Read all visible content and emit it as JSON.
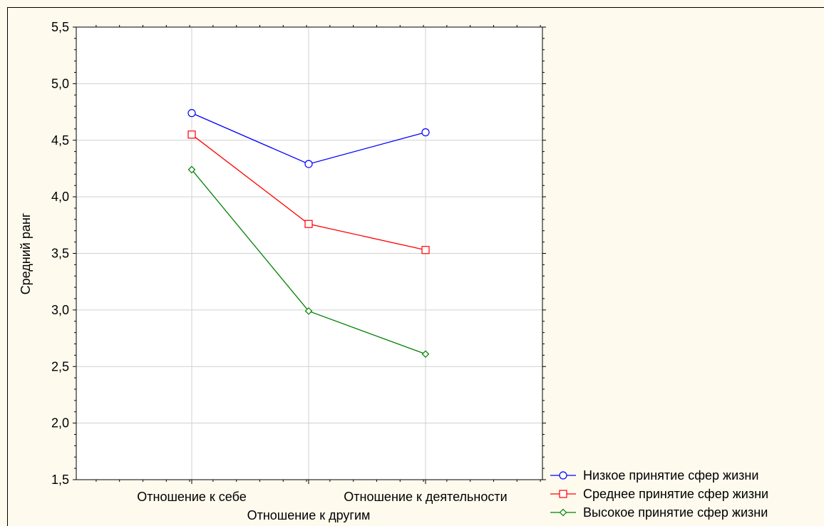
{
  "chart_data": {
    "type": "line",
    "ylabel": "Средний ранг",
    "categories": [
      "Отношение к себе",
      "Отношение к другим",
      "Отношение к деятельности"
    ],
    "ylim": [
      1.5,
      5.5
    ],
    "yticks": [
      "1,5",
      "2,0",
      "2,5",
      "3,0",
      "3,5",
      "4,0",
      "4,5",
      "5,0",
      "5,5"
    ],
    "grid": true,
    "legend_position": "bottom-right",
    "series": [
      {
        "name": "Низкое принятие сфер жизни",
        "values": [
          4.74,
          4.29,
          4.57
        ],
        "color": "#0000ff",
        "marker": "circle"
      },
      {
        "name": "Среднее принятие сфер жизни",
        "values": [
          4.55,
          3.76,
          3.53
        ],
        "color": "#ff0000",
        "marker": "square"
      },
      {
        "name": "Высокое принятие сфер жизни",
        "values": [
          4.24,
          2.99,
          2.61
        ],
        "color": "#008000",
        "marker": "diamond"
      }
    ]
  },
  "colors": {
    "background": "#fffaee",
    "plot_background": "#ffffff",
    "grid": "#d0d0d0",
    "axis": "#000000"
  }
}
